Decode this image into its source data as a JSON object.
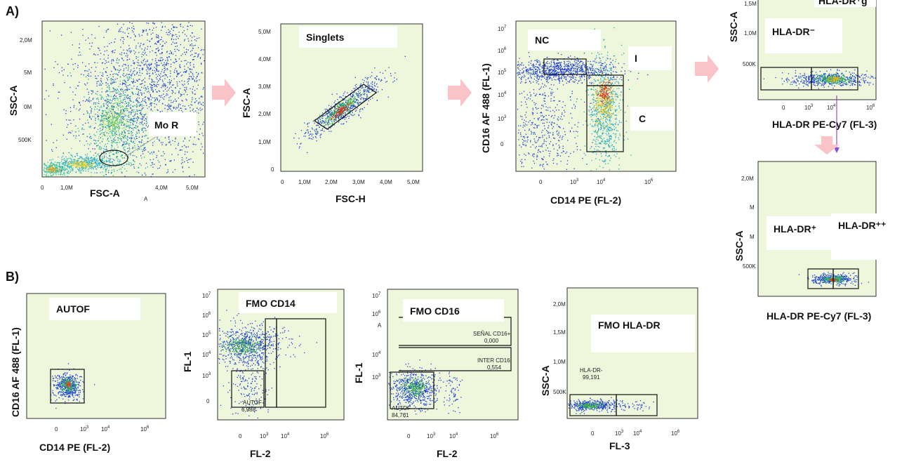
{
  "panels": {
    "a": "A)",
    "b": "B)"
  },
  "charts": {
    "a1": {
      "title": "Mo R",
      "xlabel": "FSC-A",
      "ylabel": "SSC-A",
      "xticks": [
        "0",
        "1,0M",
        "",
        "4,0M",
        "5,0M"
      ],
      "yticks": [
        "2,0M",
        "5M",
        "0M",
        "500K"
      ],
      "extra": "A"
    },
    "a2": {
      "title": "Singlets",
      "xlabel": "FSC-H",
      "ylabel": "FSC-A",
      "xticks": [
        "0",
        "1,0M",
        "2,0M",
        "3,0M",
        "4,0M",
        "5,0M"
      ],
      "yticks": [
        "5,0M",
        "4,0M",
        "3,0M",
        "2,0M",
        "1,0M",
        "0"
      ]
    },
    "a3": {
      "gates": [
        "NC",
        "I",
        "C"
      ],
      "xlabel": "CD14 PE (FL-2)",
      "ylabel": "CD16 AF 488 (FL-1)"
    },
    "a4": {
      "title": "HLA-DR⁻",
      "title_top": "HLA-DR⁺g",
      "xlabel": "HLA-DR PE-Cy7 (FL-3)",
      "ylabel": "SSC-A",
      "yticks": [
        "1,5M",
        "1,0M",
        "500K"
      ]
    },
    "a5": {
      "gate_pos": "HLA-DR⁺",
      "gate_pospos": "HLA-DR⁺⁺",
      "xlabel": "HLA-DR PE-Cy7 (FL-3)",
      "ylabel": "SSC-A",
      "yticks": [
        "2,0M",
        "M",
        "M",
        "500K"
      ]
    },
    "b1": {
      "title": "AUTOF",
      "xlabel": "CD14 PE (FL-2)",
      "ylabel": "CD16 AF 488 (FL-1)"
    },
    "b2": {
      "title": "FMO CD14",
      "xlabel": "FL-2",
      "ylabel": "FL-1",
      "gate_label": "AUTOF",
      "gate_value": "6,988"
    },
    "b3": {
      "title": "FMO CD16",
      "xlabel": "FL-2",
      "ylabel": "FL-1",
      "g1_label": "SEÑAL CD16+",
      "g1_value": "0,000",
      "g2_label": "INTER CD16",
      "g2_value": "0,554",
      "g3_label": "AUTOF",
      "g3_value": "84,761",
      "side": "A"
    },
    "b4": {
      "title": "FMO HLA-DR",
      "xlabel": "FL-3",
      "ylabel": "SSC-A",
      "gate_label": "HLA-DR-",
      "gate_value": "99,191",
      "yticks": [
        "2,0M",
        "1,5M",
        "1,0M",
        "500K"
      ]
    }
  },
  "log_ticks": {
    "x": [
      "0",
      "10",
      "10",
      "10"
    ],
    "x_exp": [
      "",
      "3",
      "4",
      "6"
    ],
    "y": [
      "10",
      "10",
      "10",
      "10",
      "10",
      "0"
    ],
    "y_exp": [
      "7",
      "6",
      "5",
      "4",
      "3",
      ""
    ]
  },
  "chart_data": [
    {
      "type": "scatter",
      "title": "Mo R",
      "xlabel": "FSC-A",
      "ylabel": "SSC-A"
    },
    {
      "type": "scatter",
      "title": "Singlets",
      "xlabel": "FSC-H",
      "ylabel": "FSC-A"
    },
    {
      "type": "scatter",
      "xlabel": "CD14 PE (FL-2)",
      "ylabel": "CD16 AF 488 (FL-1)"
    },
    {
      "type": "scatter",
      "xlabel": "HLA-DR PE-Cy7 (FL-3)",
      "ylabel": "SSC-A"
    },
    {
      "type": "scatter",
      "xlabel": "HLA-DR PE-Cy7 (FL-3)",
      "ylabel": "SSC-A"
    },
    {
      "type": "scatter",
      "title": "AUTOF",
      "xlabel": "CD14 PE (FL-2)",
      "ylabel": "CD16 AF 488 (FL-1)"
    },
    {
      "type": "scatter",
      "title": "FMO CD14",
      "xlabel": "FL-2",
      "ylabel": "FL-1",
      "gates": [
        {
          "name": "AUTOF",
          "value": 6.988
        }
      ]
    },
    {
      "type": "scatter",
      "title": "FMO CD16",
      "xlabel": "FL-2",
      "ylabel": "FL-1",
      "gates": [
        {
          "name": "SEÑAL CD16+",
          "value": 0.0
        },
        {
          "name": "INTER CD16",
          "value": 0.554
        },
        {
          "name": "AUTOF",
          "value": 84.761
        }
      ]
    },
    {
      "type": "scatter",
      "title": "FMO HLA-DR",
      "xlabel": "FL-3",
      "ylabel": "SSC-A",
      "gates": [
        {
          "name": "HLA-DR-",
          "value": 99.191
        }
      ]
    }
  ],
  "colors": {
    "plot_bg": "#eef6dc",
    "arrow": "#f9c3c8",
    "dots": "#1f3fd6",
    "gate_line": "#8a4fd0"
  }
}
